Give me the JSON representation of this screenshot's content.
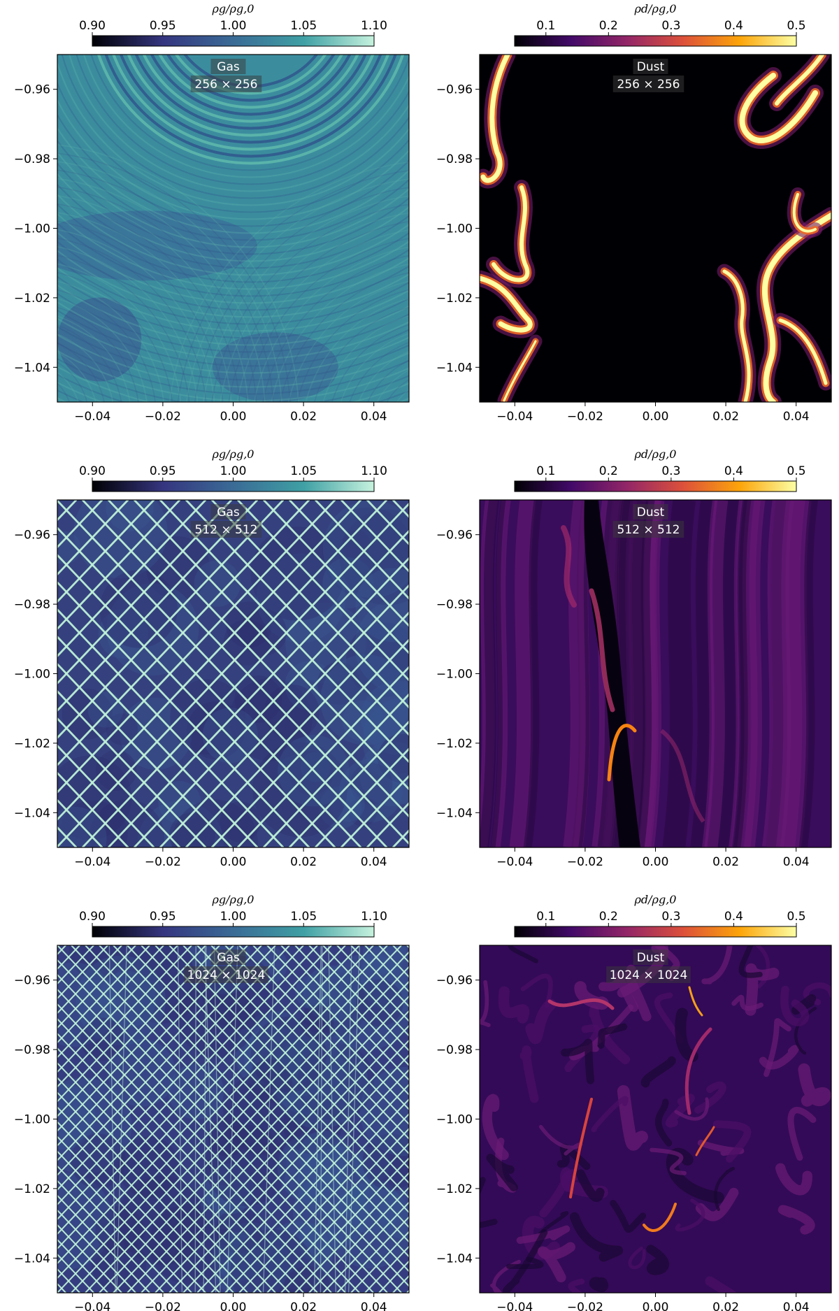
{
  "chart_data": [
    {
      "type": "heatmap",
      "panel_title": "Gas",
      "resolution": "256 × 256",
      "pattern": "waves",
      "colormap": "viridis-like",
      "colorbar": {
        "label": "ρg/ρg,0",
        "range": [
          0.9,
          1.1
        ],
        "ticks": [
          "0.90",
          "0.95",
          "1.00",
          "1.05",
          "1.10"
        ],
        "colors": [
          "#000004",
          "#35357f",
          "#3a6b96",
          "#3fa0a4",
          "#c6f2de"
        ]
      },
      "xlim": [
        -0.05,
        0.05
      ],
      "ylim": [
        -1.05,
        -0.95
      ],
      "xticks": [
        "−0.04",
        "−0.02",
        "0.00",
        "0.02",
        "0.04"
      ],
      "yticks": [
        "−0.96",
        "−0.98",
        "−1.00",
        "−1.02",
        "−1.04"
      ]
    },
    {
      "type": "heatmap",
      "panel_title": "Dust",
      "resolution": "256 × 256",
      "pattern": "filaments-edges",
      "colormap": "inferno",
      "colorbar": {
        "label": "ρd/ρg,0",
        "range": [
          0.05,
          0.5
        ],
        "ticks": [
          "0.1",
          "0.2",
          "0.3",
          "0.4",
          "0.5"
        ],
        "colors": [
          "#000004",
          "#420a68",
          "#932667",
          "#dd513a",
          "#fca50a",
          "#fcffa4"
        ]
      },
      "xlim": [
        -0.05,
        0.05
      ],
      "ylim": [
        -1.05,
        -0.95
      ],
      "xticks": [
        "−0.04",
        "−0.02",
        "0.00",
        "0.02",
        "0.04"
      ],
      "yticks": [
        "−0.96",
        "−0.98",
        "−1.00",
        "−1.02",
        "−1.04"
      ]
    },
    {
      "type": "heatmap",
      "panel_title": "Gas",
      "resolution": "512 × 512",
      "pattern": "grid-coarse",
      "colormap": "viridis-like",
      "colorbar": {
        "label": "ρg/ρg,0",
        "range": [
          0.9,
          1.1
        ],
        "ticks": [
          "0.90",
          "0.95",
          "1.00",
          "1.05",
          "1.10"
        ],
        "colors": [
          "#000004",
          "#35357f",
          "#3a6b96",
          "#3fa0a4",
          "#c6f2de"
        ]
      },
      "xlim": [
        -0.05,
        0.05
      ],
      "ylim": [
        -1.05,
        -0.95
      ],
      "xticks": [
        "−0.04",
        "−0.02",
        "0.00",
        "0.02",
        "0.04"
      ],
      "yticks": [
        "−0.96",
        "−0.98",
        "−1.00",
        "−1.02",
        "−1.04"
      ]
    },
    {
      "type": "heatmap",
      "panel_title": "Dust",
      "resolution": "512 × 512",
      "pattern": "streaks",
      "colormap": "inferno",
      "colorbar": {
        "label": "ρd/ρg,0",
        "range": [
          0.05,
          0.5
        ],
        "ticks": [
          "0.1",
          "0.2",
          "0.3",
          "0.4",
          "0.5"
        ],
        "colors": [
          "#000004",
          "#420a68",
          "#932667",
          "#dd513a",
          "#fca50a",
          "#fcffa4"
        ]
      },
      "xlim": [
        -0.05,
        0.05
      ],
      "ylim": [
        -1.05,
        -0.95
      ],
      "xticks": [
        "−0.04",
        "−0.02",
        "0.00",
        "0.02",
        "0.04"
      ],
      "yticks": [
        "−0.96",
        "−0.98",
        "−1.00",
        "−1.02",
        "−1.04"
      ]
    },
    {
      "type": "heatmap",
      "panel_title": "Gas",
      "resolution": "1024 × 1024",
      "pattern": "grid-fine",
      "colormap": "viridis-like",
      "colorbar": {
        "label": "ρg/ρg,0",
        "range": [
          0.9,
          1.1
        ],
        "ticks": [
          "0.90",
          "0.95",
          "1.00",
          "1.05",
          "1.10"
        ],
        "colors": [
          "#000004",
          "#35357f",
          "#3a6b96",
          "#3fa0a4",
          "#c6f2de"
        ]
      },
      "xlim": [
        -0.05,
        0.05
      ],
      "ylim": [
        -1.05,
        -0.95
      ],
      "xticks": [
        "−0.04",
        "−0.02",
        "0.00",
        "0.02",
        "0.04"
      ],
      "yticks": [
        "−0.96",
        "−0.98",
        "−1.00",
        "−1.02",
        "−1.04"
      ]
    },
    {
      "type": "heatmap",
      "panel_title": "Dust",
      "resolution": "1024 × 1024",
      "pattern": "turbulence",
      "colormap": "inferno",
      "colorbar": {
        "label": "ρd/ρg,0",
        "range": [
          0.05,
          0.5
        ],
        "ticks": [
          "0.1",
          "0.2",
          "0.3",
          "0.4",
          "0.5"
        ],
        "colors": [
          "#000004",
          "#420a68",
          "#932667",
          "#dd513a",
          "#fca50a",
          "#fcffa4"
        ]
      },
      "xlim": [
        -0.05,
        0.05
      ],
      "ylim": [
        -1.05,
        -0.95
      ],
      "xticks": [
        "−0.04",
        "−0.02",
        "0.00",
        "0.02",
        "0.04"
      ],
      "yticks": [
        "−0.96",
        "−0.98",
        "−1.00",
        "−1.02",
        "−1.04"
      ]
    }
  ]
}
